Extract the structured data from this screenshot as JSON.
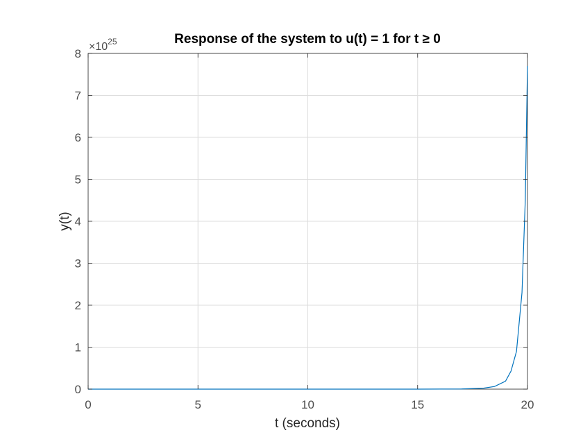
{
  "chart_data": {
    "type": "line",
    "title": "Response of the system to u(t) = 1 for t ≥ 0",
    "xlabel": "t (seconds)",
    "ylabel": "y(t)",
    "xlim": [
      0,
      20
    ],
    "ylim": [
      0,
      8e+25
    ],
    "y_exponent_label": "×10",
    "y_exponent_power": "25",
    "x_ticks": [
      0,
      5,
      10,
      15,
      20
    ],
    "x_tick_labels": [
      "0",
      "5",
      "10",
      "15",
      "20"
    ],
    "y_ticks": [
      0,
      1e+25,
      2e+25,
      3e+25,
      4e+25,
      5e+25,
      6e+25,
      7e+25,
      8e+25
    ],
    "y_tick_labels": [
      "0",
      "1",
      "2",
      "3",
      "4",
      "5",
      "6",
      "7",
      "8"
    ],
    "grid": true,
    "series": [
      {
        "color": "#0072bd",
        "x": [
          0,
          5,
          10,
          15,
          17,
          18,
          18.5,
          19,
          19.25,
          19.5,
          19.75,
          19.9,
          20
        ],
        "y": [
          0,
          0,
          0,
          1.8e+21,
          4.5e+22,
          2.3e+23,
          6.3e+23,
          1.9e+24,
          4.3e+24,
          9e+24,
          2.3e+25,
          4.5e+25,
          7.7e+25
        ]
      }
    ]
  }
}
